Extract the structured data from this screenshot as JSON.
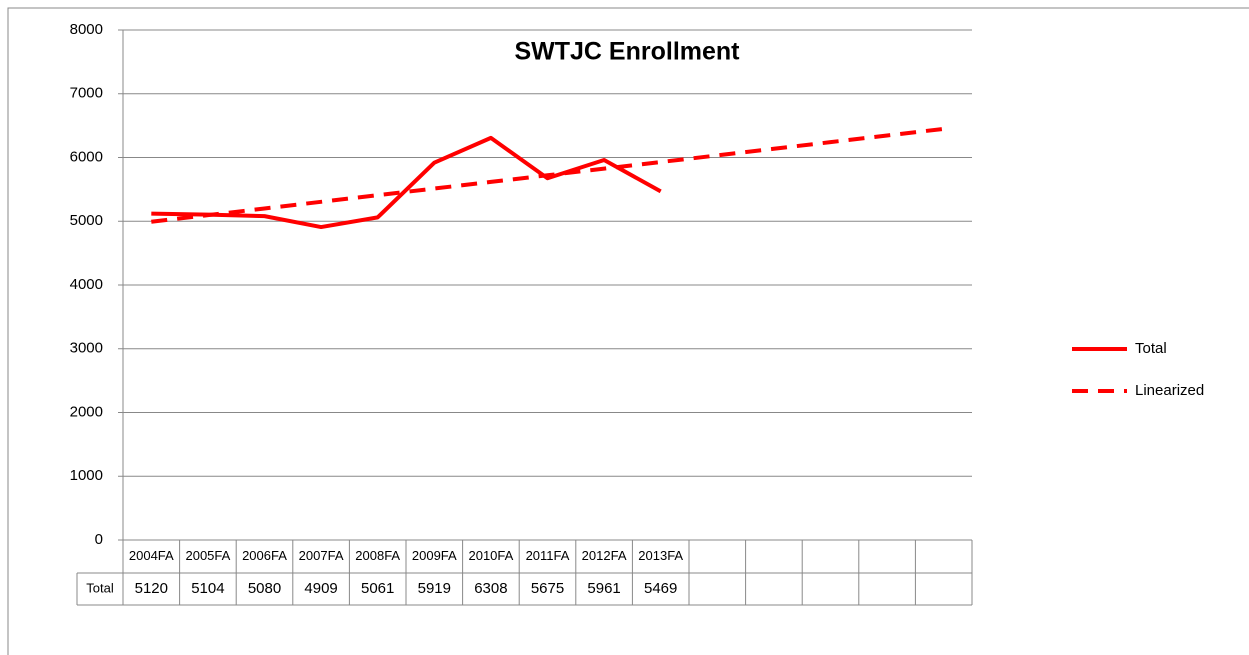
{
  "chart_data": {
    "type": "line",
    "title": "SWTJC Enrollment",
    "categories": [
      "2004FA",
      "2005FA",
      "2006FA",
      "2007FA",
      "2008FA",
      "2009FA",
      "2010FA",
      "2011FA",
      "2012FA",
      "2013FA",
      null,
      null,
      null,
      null,
      null
    ],
    "series": [
      {
        "name": "Total",
        "color": "#ff0000",
        "line_style": "solid",
        "values": [
          5120,
          5104,
          5080,
          4909,
          5061,
          5919,
          6308,
          5675,
          5961,
          5469,
          null,
          null,
          null,
          null,
          null
        ]
      },
      {
        "name": "Linearized",
        "color": "#ff0000",
        "line_style": "dashed",
        "values": [
          4992,
          5096,
          5200,
          5305,
          5409,
          5513,
          5617,
          5721,
          5825,
          5929,
          6033,
          6137,
          6241,
          6345,
          6449
        ]
      }
    ],
    "ylim": [
      0,
      8000
    ],
    "yticks": [
      0,
      1000,
      2000,
      3000,
      4000,
      5000,
      6000,
      7000,
      8000
    ],
    "grid": true,
    "legend": "right",
    "data_table_series": [
      0
    ]
  }
}
